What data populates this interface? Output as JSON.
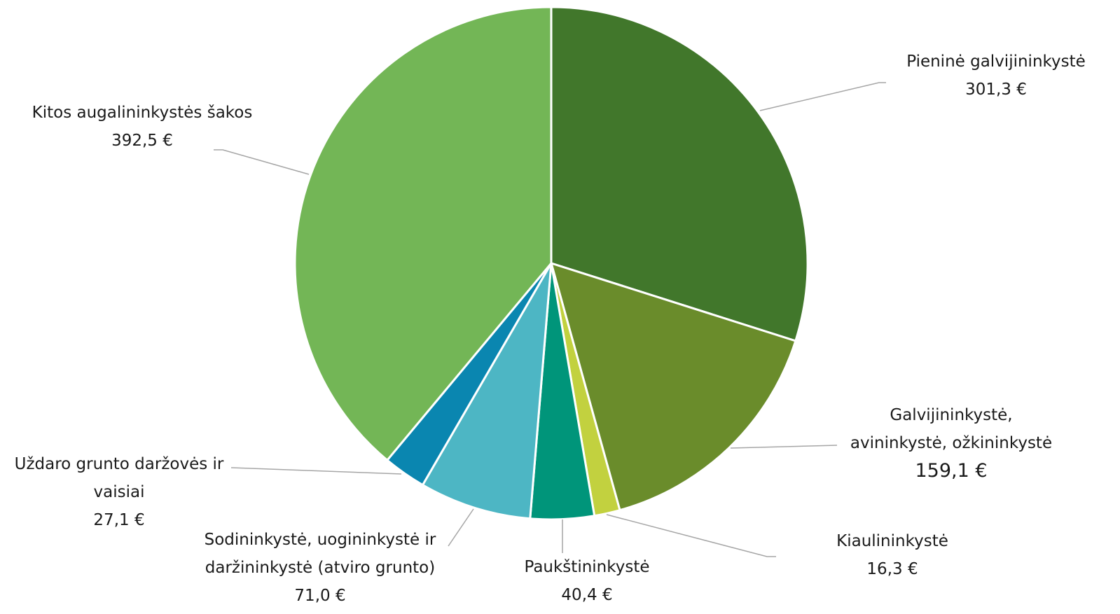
{
  "chart_data": {
    "type": "pie",
    "categories": [
      "Pieninė galvijininkystė",
      "Galvijininkystė, avininkystė, ožkininkystė",
      "Kiaulininkystė",
      "Paukštininkystė",
      "Sodininkystė, uogininkystė ir daržininkystė (atviro grunto)",
      "Uždaro grunto daržovės ir vaisiai",
      "Kitos augalininkystės šakos"
    ],
    "values": [
      301.3,
      159.1,
      16.3,
      40.4,
      71.0,
      27.1,
      392.5
    ],
    "value_labels": [
      "301,3 €",
      "159,1 €",
      "16,3 €",
      "40,4 €",
      "71,0 €",
      "27,1 €",
      "392,5 €"
    ],
    "colors": [
      "#41772b",
      "#6a8c2b",
      "#c2d13f",
      "#00957a",
      "#4db6c4",
      "#0a86b0",
      "#73b656"
    ]
  }
}
